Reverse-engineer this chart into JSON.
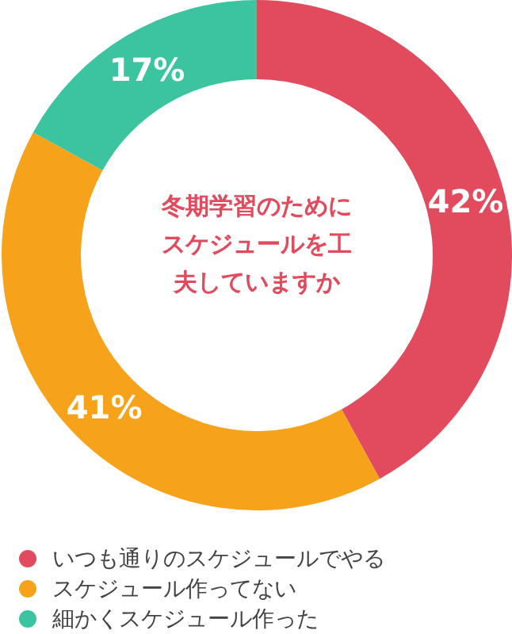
{
  "chart_data": {
    "type": "donut",
    "title": "冬期学習のためにスケジュールを工夫していますか",
    "categories": [
      "いつも通りのスケジュールでやる",
      "スケジュール作ってない",
      "細かくスケジュール作った"
    ],
    "values": [
      42,
      41,
      17
    ],
    "colors": [
      "#e24a5d",
      "#f6a31b",
      "#3cc4a0"
    ],
    "value_labels": [
      "42%",
      "41%",
      "17%"
    ],
    "legend": "bottom"
  }
}
